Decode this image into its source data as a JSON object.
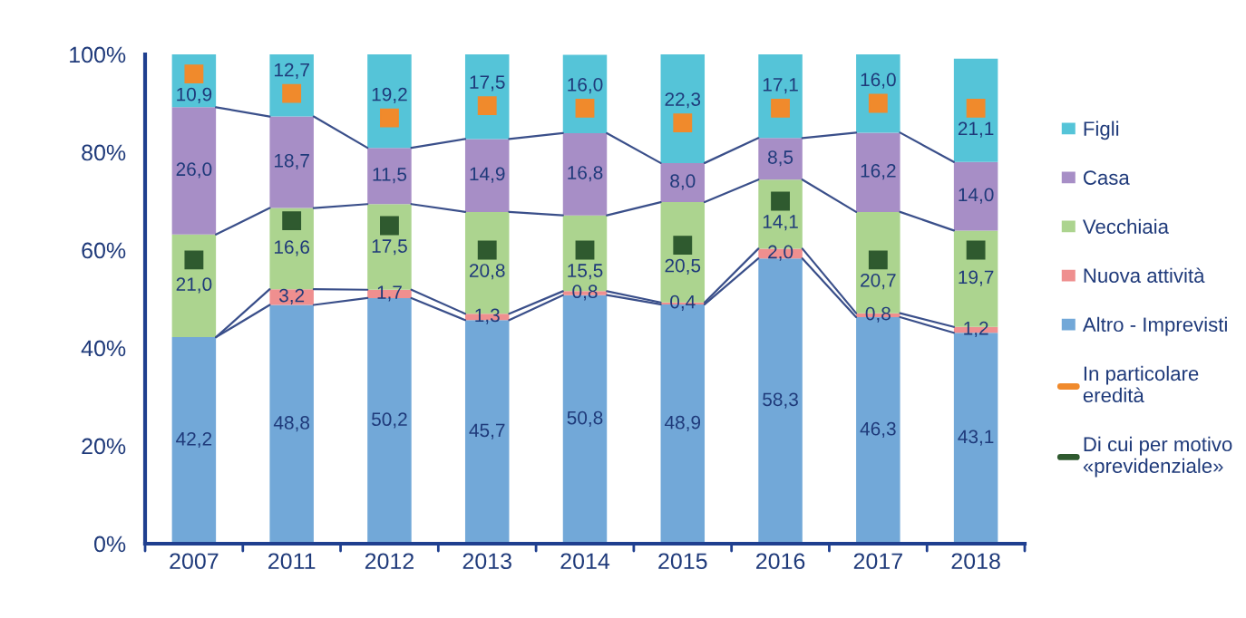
{
  "chart_data": {
    "type": "bar",
    "stacked": true,
    "legend": "right",
    "grid": false,
    "categories": [
      "2007",
      "2011",
      "2012",
      "2013",
      "2014",
      "2015",
      "2016",
      "2017",
      "2018"
    ],
    "ylim": [
      0,
      100
    ],
    "yticks": [
      {
        "value": 0,
        "label": "0%"
      },
      {
        "value": 20,
        "label": "20%"
      },
      {
        "value": 40,
        "label": "40%"
      },
      {
        "value": 60,
        "label": "60%"
      },
      {
        "value": 80,
        "label": "80%"
      },
      {
        "value": 100,
        "label": "100%"
      }
    ],
    "series": [
      {
        "name": "Altro - Imprevisti",
        "color": "#72a8d8",
        "values": [
          42.2,
          48.8,
          50.2,
          45.7,
          50.8,
          48.9,
          58.3,
          46.3,
          43.1
        ],
        "value_labels": [
          "42,2",
          "48,8",
          "50,2",
          "45,7",
          "50,8",
          "48,9",
          "58,3",
          "46,3",
          "43,1"
        ]
      },
      {
        "name": "Nuova attività",
        "color": "#ef8f8f",
        "values": [
          null,
          3.2,
          1.7,
          1.3,
          0.8,
          0.4,
          2.0,
          0.8,
          1.2
        ],
        "value_labels": [
          null,
          "3,2",
          "1,7",
          "1,3",
          "0,8",
          "0,4",
          "2,0",
          "0,8",
          "1,2"
        ]
      },
      {
        "name": "Vecchiaia",
        "color": "#acd48f",
        "values": [
          21.0,
          16.6,
          17.5,
          20.8,
          15.5,
          20.5,
          14.1,
          20.7,
          19.7
        ],
        "value_labels": [
          "21,0",
          "16,6",
          "17,5",
          "20,8",
          "15,5",
          "20,5",
          "14,1",
          "20,7",
          "19,7"
        ]
      },
      {
        "name": "Casa",
        "color": "#a78ec6",
        "values": [
          26.0,
          18.7,
          11.5,
          14.9,
          16.8,
          8.0,
          8.5,
          16.2,
          14.0
        ],
        "value_labels": [
          "26,0",
          "18,7",
          "11,5",
          "14,9",
          "16,8",
          "8,0",
          "8,5",
          "16,2",
          "14,0"
        ]
      },
      {
        "name": "Figli",
        "color": "#55c4d8",
        "values": [
          10.9,
          12.7,
          19.2,
          17.5,
          16.0,
          22.3,
          17.1,
          16.0,
          21.1
        ],
        "value_labels": [
          "10,9",
          "12,7",
          "19,2",
          "17,5",
          "16,0",
          "22,3",
          "17,1",
          "16,0",
          "21,1"
        ]
      },
      {
        "name": "In particolare\neredità",
        "type": "scatter",
        "marker": "square",
        "color": "#f08a2c",
        "values": [
          96,
          92,
          87,
          89.5,
          89,
          86,
          89,
          90,
          89
        ]
      },
      {
        "name": "Di cui per motivo\n«previdenziale»",
        "type": "scatter",
        "marker": "square",
        "color": "#2f5a2f",
        "values": [
          58,
          66,
          65,
          60,
          60,
          61,
          70,
          58,
          60
        ]
      }
    ]
  }
}
